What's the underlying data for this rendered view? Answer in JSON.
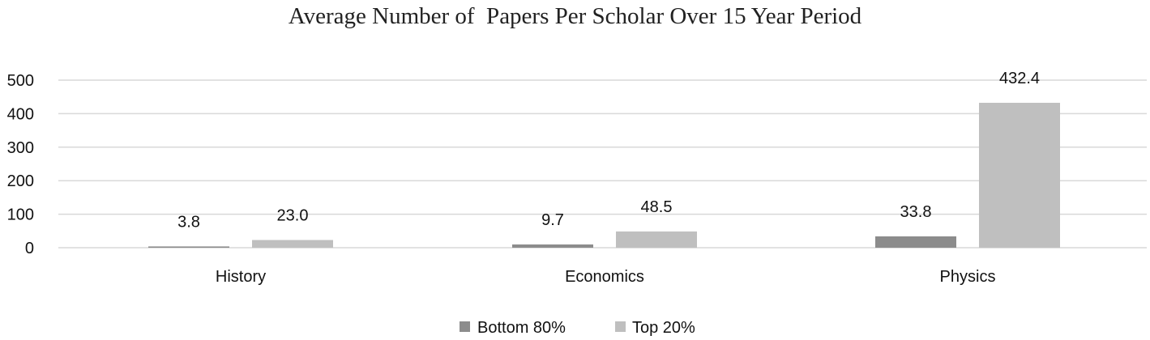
{
  "chart_data": {
    "type": "bar",
    "title": "Average Number of  Papers Per Scholar Over 15 Year Period",
    "categories": [
      "History",
      "Economics",
      "Physics"
    ],
    "series": [
      {
        "name": "Bottom 80%",
        "values": [
          3.8,
          9.7,
          33.8
        ],
        "labels": [
          "3.8",
          "9.7",
          "33.8"
        ]
      },
      {
        "name": "Top 20%",
        "values": [
          23.0,
          48.5,
          432.4
        ],
        "labels": [
          "23.0",
          "48.5",
          "432.4"
        ]
      }
    ],
    "ylim": [
      0,
      500
    ],
    "yticks": [
      0,
      100,
      200,
      300,
      400,
      500
    ],
    "grid": true,
    "legend_position": "bottom",
    "colors": {
      "Bottom 80%": "#8c8c8c",
      "Top 20%": "#bfbfbf",
      "grid": "#d9d9d9"
    }
  }
}
